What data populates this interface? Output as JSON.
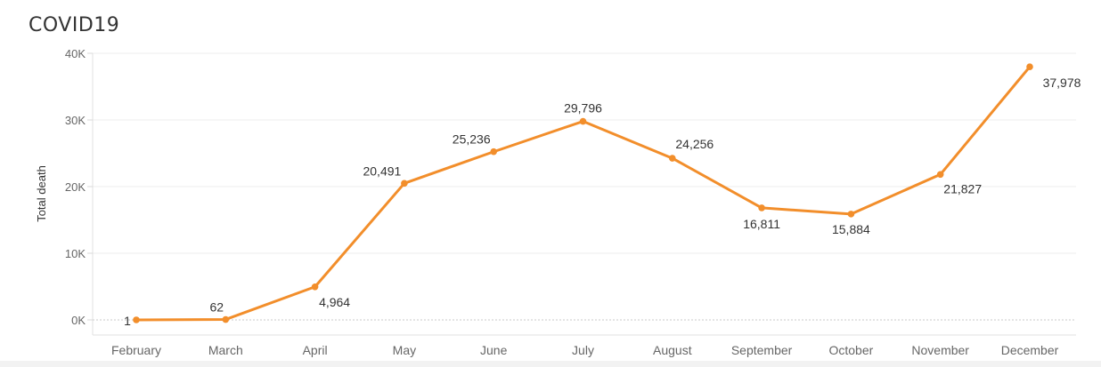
{
  "title": "COVID19",
  "chart_data": {
    "type": "line",
    "title": "COVID19",
    "xlabel": "",
    "ylabel": "Total death",
    "categories": [
      "February",
      "March",
      "April",
      "May",
      "June",
      "July",
      "August",
      "September",
      "October",
      "November",
      "December"
    ],
    "values": [
      1,
      62,
      4964,
      20491,
      25236,
      29796,
      24256,
      16811,
      15884,
      21827,
      37978
    ],
    "value_labels": [
      "1",
      "62",
      "4,964",
      "20,491",
      "25,236",
      "29,796",
      "24,256",
      "16,811",
      "15,884",
      "21,827",
      "37,978"
    ],
    "ylim": [
      0,
      40000
    ],
    "yticks": [
      0,
      10000,
      20000,
      30000,
      40000
    ],
    "ytick_labels": [
      "0K",
      "10K",
      "20K",
      "30K",
      "40K"
    ],
    "grid": true,
    "line_color": "#F28E2B",
    "axis_text_color": "#666666",
    "label_color": "#333333"
  }
}
